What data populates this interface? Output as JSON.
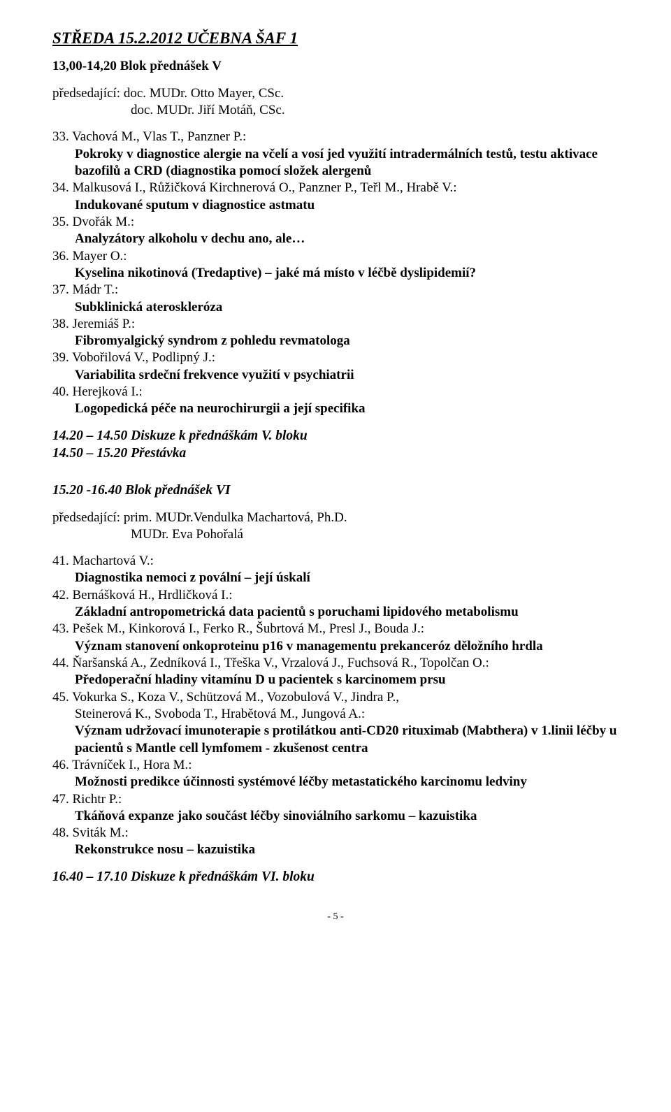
{
  "header": {
    "title": "STŘEDA 15.2.2012  UČEBNA ŠAF 1"
  },
  "block5": {
    "session": "13,00-14,20 Blok přednášek V",
    "chair_label": "předsedající:  doc. MUDr. Otto Mayer, CSc.",
    "chair_line2": "doc. MUDr. Jiří Motáň, CSc.",
    "items": [
      {
        "num": "33.",
        "authors": "Vachová M., Vlas T., Panzner P.:",
        "title": "Pokroky v diagnostice alergie na včelí a vosí jed využití intradermálních testů, testu aktivace bazofilů a CRD (diagnostika pomocí složek alergenů"
      },
      {
        "num": "34.",
        "authors": "Malkusová I., Růžičková Kirchnerová O., Panzner P., Teřl M., Hrabě V.:",
        "title": "Indukované sputum v diagnostice astmatu"
      },
      {
        "num": "35.",
        "authors": "Dvořák M.:",
        "title": "Analyzátory alkoholu v dechu ano, ale…"
      },
      {
        "num": "36.",
        "authors": "Mayer O.:",
        "title": "Kyselina nikotinová (Tredaptive) – jaké má místo v léčbě dyslipidemií?"
      },
      {
        "num": "37.",
        "authors": "Mádr T.:",
        "title": "Subklinická ateroskleróza"
      },
      {
        "num": "38.",
        "authors": "Jeremiáš P.:",
        "title": "Fibromyalgický syndrom z pohledu revmatologa"
      },
      {
        "num": "39.",
        "authors": "Vobořilová V., Podlipný J.:",
        "title": "Variabilita srdeční frekvence využití v psychiatrii"
      },
      {
        "num": "40.",
        "authors": "Herejková I.:",
        "title": "Logopedická péče na neurochirurgii a její specifika"
      }
    ],
    "discussion": "14.20 – 14.50  Diskuze k přednáškám V. bloku",
    "break": "14.50 – 15.20  Přestávka"
  },
  "block6": {
    "heading": "15.20 -16.40 Blok přednášek VI",
    "chair_label": "předsedající:  prim. MUDr.Vendulka Machartová, Ph.D.",
    "chair_line2": "MUDr. Eva Pohořalá",
    "items": [
      {
        "num": "41.",
        "authors": "Machartová V.:",
        "title": "Diagnostika nemoci z povální – její úskalí"
      },
      {
        "num": "42.",
        "authors": "Bernášková H., Hrdličková I.:",
        "title": "Základní antropometrická data pacientů s poruchami lipidového metabolismu"
      },
      {
        "num": "43.",
        "authors": "Pešek M., Kinkorová I., Ferko R., Šubrtová M., Presl J., Bouda J.:",
        "title": "Význam stanovení onkoproteinu p16 v managementu prekanceróz děložního hrdla"
      },
      {
        "num": "44.",
        "authors": "Ňaršanská A., Zedníková I., Třeška V., Vrzalová J., Fuchsová R., Topolčan O.:",
        "title": "Předoperační hladiny vitamínu D u pacientek  s karcinomem prsu"
      },
      {
        "num": "45.",
        "authors": "Vokurka S., Koza V., Schützová M., Vozobulová V.,  Jindra P.,",
        "cont": "Steinerová K., Svoboda T., Hrabětová M., Jungová A.:",
        "title": "Význam udržovací imunoterapie s protilátkou anti-CD20 rituximab (Mabthera) v 1.linii léčby u pacientů s Mantle cell lymfomem - zkušenost centra"
      },
      {
        "num": "46.",
        "authors": "Trávníček I., Hora M.:",
        "title": "Možnosti predikce účinnosti systémové léčby metastatického karcinomu ledviny"
      },
      {
        "num": "47.",
        "authors": "Richtr P.:",
        "title": "Tkáňová expanze jako součást léčby sinoviálního sarkomu – kazuistika"
      },
      {
        "num": "48.",
        "authors": "Sviták M.:",
        "title": "Rekonstrukce nosu – kazuistika"
      }
    ],
    "discussion": "16.40 – 17.10 Diskuze k přednáškám VI. bloku"
  },
  "footer": {
    "page_number": "- 5 -"
  }
}
